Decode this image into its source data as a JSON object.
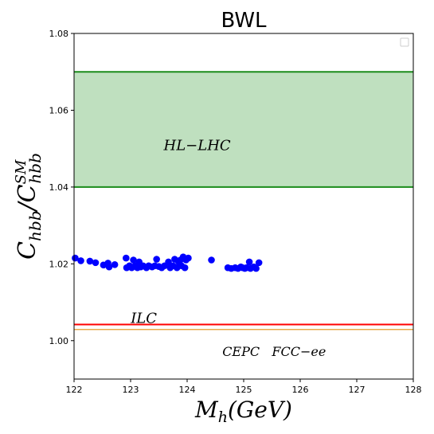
{
  "chart_data": {
    "type": "scatter",
    "title": "BWL",
    "xlabel": {
      "main": "M",
      "sub": "h",
      "rest": "(GeV)"
    },
    "ylabel": {
      "main": "C",
      "sub": "hbb",
      "slash": "/",
      "main2": "C",
      "sub2": "hbb",
      "sup2": "SM"
    },
    "xlim": [
      122,
      128
    ],
    "ylim": [
      0.99,
      1.08
    ],
    "xticks": [
      "122",
      "123",
      "124",
      "125",
      "126",
      "127",
      "128"
    ],
    "yticks": [
      "1.00",
      "1.02",
      "1.04",
      "1.06",
      "1.08"
    ],
    "xtick_values": [
      122,
      123,
      124,
      125,
      126,
      127,
      128
    ],
    "ytick_values": [
      1.0,
      1.02,
      1.04,
      1.06,
      1.08
    ],
    "band": {
      "label": "HL−LHC",
      "y_low": 1.04,
      "y_high": 1.07,
      "fill": "#bfe0bf",
      "edge": "#1a8c1a"
    },
    "lines": [
      {
        "label": "ILC",
        "y": 1.0042,
        "color": "#ff0000"
      },
      {
        "label": "CEPC   FCC−ee",
        "y": 1.0029,
        "color": "#e8a94a"
      }
    ],
    "band_label_pos": {
      "x": 124.6,
      "y": 1.0505
    },
    "ilc_label_pos": {
      "x": 123.2,
      "y": 1.0048
    },
    "cepc_label_pos": {
      "x": 125.2,
      "y": 0.9977
    },
    "point_color": "#0000ff",
    "points": [
      [
        122.02,
        1.0215
      ],
      [
        122.12,
        1.0208
      ],
      [
        122.28,
        1.0207
      ],
      [
        122.38,
        1.0203
      ],
      [
        122.52,
        1.0197
      ],
      [
        122.6,
        1.0202
      ],
      [
        122.62,
        1.0192
      ],
      [
        122.72,
        1.0198
      ],
      [
        122.92,
        1.0215
      ],
      [
        122.93,
        1.019
      ],
      [
        122.98,
        1.0195
      ],
      [
        123.02,
        1.019
      ],
      [
        123.05,
        1.021
      ],
      [
        123.08,
        1.0195
      ],
      [
        123.12,
        1.019
      ],
      [
        123.15,
        1.0205
      ],
      [
        123.18,
        1.0192
      ],
      [
        123.22,
        1.0195
      ],
      [
        123.28,
        1.019
      ],
      [
        123.32,
        1.0195
      ],
      [
        123.38,
        1.0192
      ],
      [
        123.43,
        1.0195
      ],
      [
        123.46,
        1.0212
      ],
      [
        123.5,
        1.0193
      ],
      [
        123.55,
        1.019
      ],
      [
        123.6,
        1.0195
      ],
      [
        123.67,
        1.0205
      ],
      [
        123.7,
        1.019
      ],
      [
        123.75,
        1.0195
      ],
      [
        123.78,
        1.0212
      ],
      [
        123.82,
        1.019
      ],
      [
        123.85,
        1.0205
      ],
      [
        123.88,
        1.021
      ],
      [
        123.9,
        1.0195
      ],
      [
        123.93,
        1.0218
      ],
      [
        123.96,
        1.019
      ],
      [
        123.98,
        1.021
      ],
      [
        124.02,
        1.0215
      ],
      [
        124.43,
        1.021
      ],
      [
        124.72,
        1.019
      ],
      [
        124.78,
        1.0188
      ],
      [
        124.85,
        1.019
      ],
      [
        124.9,
        1.0188
      ],
      [
        124.95,
        1.0192
      ],
      [
        124.98,
        1.019
      ],
      [
        125.02,
        1.0188
      ],
      [
        125.05,
        1.019
      ],
      [
        125.1,
        1.0205
      ],
      [
        125.12,
        1.0188
      ],
      [
        125.18,
        1.0192
      ],
      [
        125.22,
        1.0188
      ],
      [
        125.27,
        1.0203
      ]
    ]
  }
}
